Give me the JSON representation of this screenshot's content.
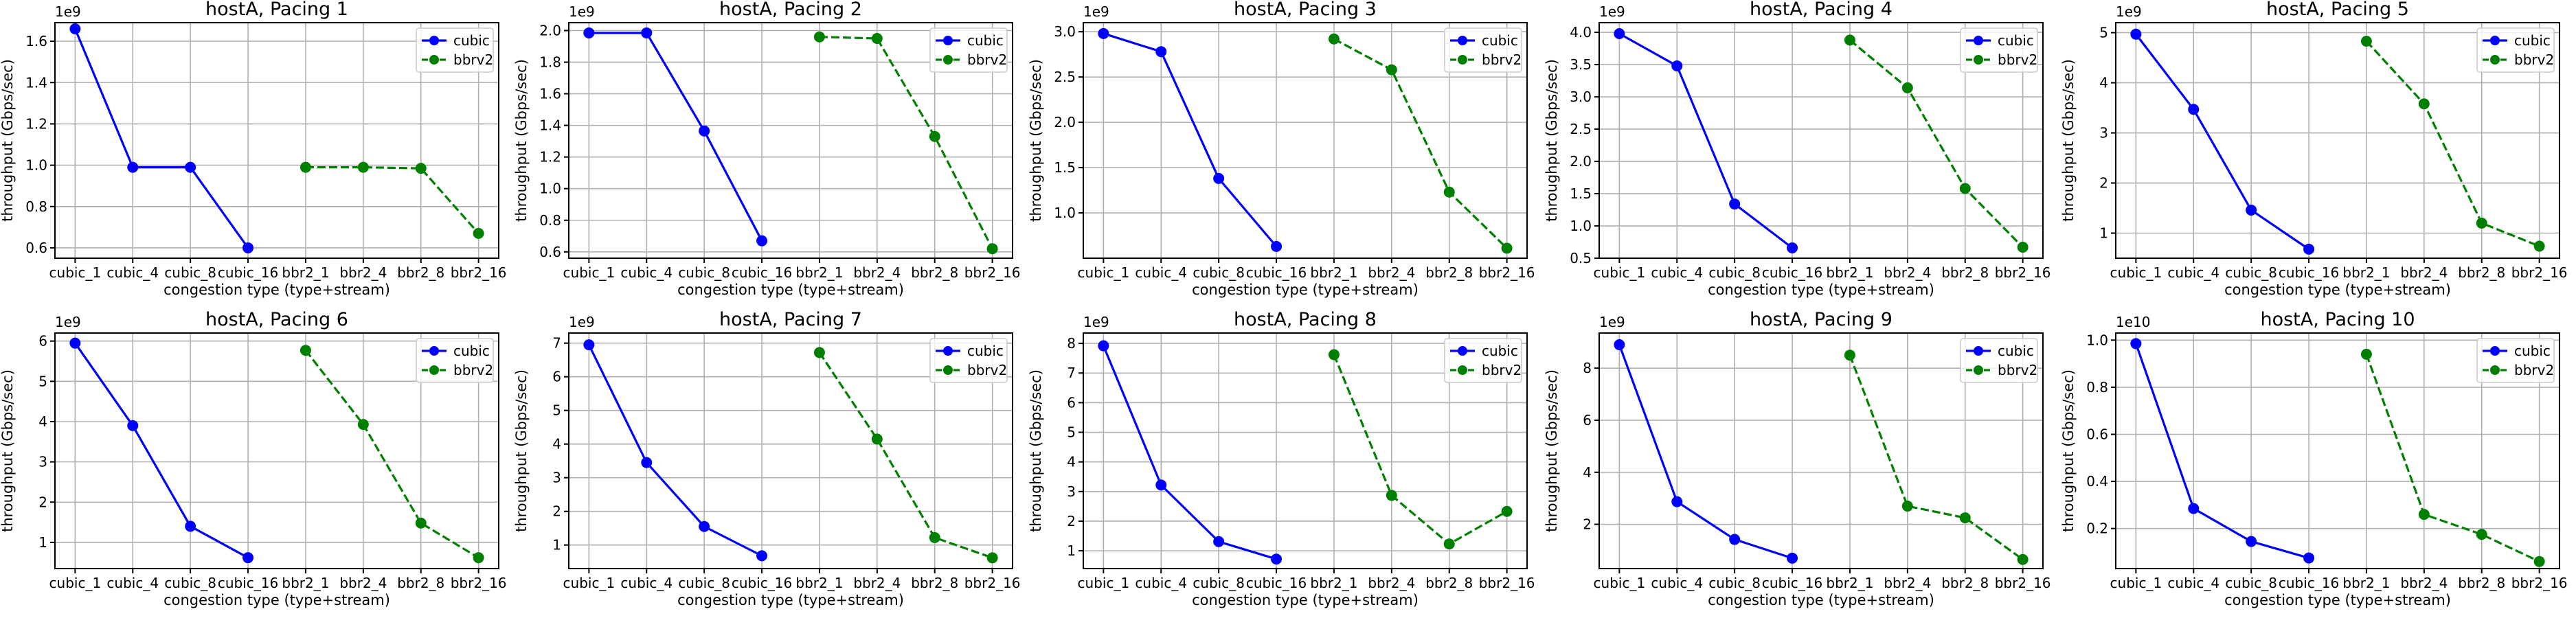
{
  "chart_data": [
    {
      "type": "line",
      "title": "hostA, Pacing 1",
      "xlabel": "congestion type (type+stream)",
      "ylabel": "throughput (Gbps/sec)",
      "offset_label": "1e9",
      "ylim": [
        0.55,
        1.69
      ],
      "yticks": [
        0.6,
        0.8,
        1.0,
        1.2,
        1.4,
        1.6
      ],
      "ytick_labels": [
        "0.6",
        "0.8",
        "1.0",
        "1.2",
        "1.4",
        "1.6"
      ],
      "categories": [
        "cubic_1",
        "cubic_4",
        "cubic_8",
        "cubic_16",
        "bbr2_1",
        "bbr2_4",
        "bbr2_8",
        "bbr2_16"
      ],
      "grid": true,
      "legend_position": "top-right",
      "series": [
        {
          "name": "cubic",
          "color": "#0000ff",
          "style": "solid",
          "x": [
            "cubic_1",
            "cubic_4",
            "cubic_8",
            "cubic_16"
          ],
          "values": [
            1.66,
            0.99,
            0.99,
            0.6
          ]
        },
        {
          "name": "bbrv2",
          "color": "#008000",
          "style": "dashed",
          "x": [
            "bbr2_1",
            "bbr2_4",
            "bbr2_8",
            "bbr2_16"
          ],
          "values": [
            0.99,
            0.99,
            0.985,
            0.67
          ]
        }
      ]
    },
    {
      "type": "line",
      "title": "hostA, Pacing 2",
      "xlabel": "congestion type (type+stream)",
      "ylabel": "throughput (Gbps/sec)",
      "offset_label": "1e9",
      "ylim": [
        0.56,
        2.05
      ],
      "yticks": [
        0.6,
        0.8,
        1.0,
        1.2,
        1.4,
        1.6,
        1.8,
        2.0
      ],
      "ytick_labels": [
        "0.6",
        "0.8",
        "1.0",
        "1.2",
        "1.4",
        "1.6",
        "1.8",
        "2.0"
      ],
      "categories": [
        "cubic_1",
        "cubic_4",
        "cubic_8",
        "cubic_16",
        "bbr2_1",
        "bbr2_4",
        "bbr2_8",
        "bbr2_16"
      ],
      "grid": true,
      "legend_position": "top-right",
      "series": [
        {
          "name": "cubic",
          "color": "#0000ff",
          "style": "solid",
          "x": [
            "cubic_1",
            "cubic_4",
            "cubic_8",
            "cubic_16"
          ],
          "values": [
            1.985,
            1.985,
            1.365,
            0.67
          ]
        },
        {
          "name": "bbrv2",
          "color": "#008000",
          "style": "dashed",
          "x": [
            "bbr2_1",
            "bbr2_4",
            "bbr2_8",
            "bbr2_16"
          ],
          "values": [
            1.96,
            1.95,
            1.33,
            0.62
          ]
        }
      ]
    },
    {
      "type": "line",
      "title": "hostA, Pacing 3",
      "xlabel": "congestion type (type+stream)",
      "ylabel": "throughput (Gbps/sec)",
      "offset_label": "1e9",
      "ylim": [
        0.5,
        3.1
      ],
      "yticks": [
        1.0,
        1.5,
        2.0,
        2.5,
        3.0
      ],
      "ytick_labels": [
        "1.0",
        "1.5",
        "2.0",
        "2.5",
        "3.0"
      ],
      "categories": [
        "cubic_1",
        "cubic_4",
        "cubic_8",
        "cubic_16",
        "bbr2_1",
        "bbr2_4",
        "bbr2_8",
        "bbr2_16"
      ],
      "grid": true,
      "legend_position": "top-right",
      "series": [
        {
          "name": "cubic",
          "color": "#0000ff",
          "style": "solid",
          "x": [
            "cubic_1",
            "cubic_4",
            "cubic_8",
            "cubic_16"
          ],
          "values": [
            2.98,
            2.78,
            1.38,
            0.63
          ]
        },
        {
          "name": "bbrv2",
          "color": "#008000",
          "style": "dashed",
          "x": [
            "bbr2_1",
            "bbr2_4",
            "bbr2_8",
            "bbr2_16"
          ],
          "values": [
            2.92,
            2.58,
            1.23,
            0.61
          ]
        }
      ]
    },
    {
      "type": "line",
      "title": "hostA, Pacing 4",
      "xlabel": "congestion type (type+stream)",
      "ylabel": "throughput (Gbps/sec)",
      "offset_label": "1e9",
      "ylim": [
        0.5,
        4.15
      ],
      "yticks": [
        0.5,
        1.0,
        1.5,
        2.0,
        2.5,
        3.0,
        3.5,
        4.0
      ],
      "ytick_labels": [
        "0.5",
        "1.0",
        "1.5",
        "2.0",
        "2.5",
        "3.0",
        "3.5",
        "4.0"
      ],
      "categories": [
        "cubic_1",
        "cubic_4",
        "cubic_8",
        "cubic_16",
        "bbr2_1",
        "bbr2_4",
        "bbr2_8",
        "bbr2_16"
      ],
      "grid": true,
      "legend_position": "top-right",
      "series": [
        {
          "name": "cubic",
          "color": "#0000ff",
          "style": "solid",
          "x": [
            "cubic_1",
            "cubic_4",
            "cubic_8",
            "cubic_16"
          ],
          "values": [
            3.98,
            3.48,
            1.34,
            0.66
          ]
        },
        {
          "name": "bbrv2",
          "color": "#008000",
          "style": "dashed",
          "x": [
            "bbr2_1",
            "bbr2_4",
            "bbr2_8",
            "bbr2_16"
          ],
          "values": [
            3.88,
            3.14,
            1.58,
            0.67
          ]
        }
      ]
    },
    {
      "type": "line",
      "title": "hostA, Pacing 5",
      "xlabel": "congestion type (type+stream)",
      "ylabel": "throughput (Gbps/sec)",
      "offset_label": "1e9",
      "ylim": [
        0.5,
        5.2
      ],
      "yticks": [
        1,
        2,
        3,
        4,
        5
      ],
      "ytick_labels": [
        "1",
        "2",
        "3",
        "4",
        "5"
      ],
      "categories": [
        "cubic_1",
        "cubic_4",
        "cubic_8",
        "cubic_16",
        "bbr2_1",
        "bbr2_4",
        "bbr2_8",
        "bbr2_16"
      ],
      "grid": true,
      "legend_position": "top-right",
      "series": [
        {
          "name": "cubic",
          "color": "#0000ff",
          "style": "solid",
          "x": [
            "cubic_1",
            "cubic_4",
            "cubic_8",
            "cubic_16"
          ],
          "values": [
            4.97,
            3.47,
            1.46,
            0.68
          ]
        },
        {
          "name": "bbrv2",
          "color": "#008000",
          "style": "dashed",
          "x": [
            "bbr2_1",
            "bbr2_4",
            "bbr2_8",
            "bbr2_16"
          ],
          "values": [
            4.83,
            3.58,
            1.2,
            0.74
          ]
        }
      ]
    },
    {
      "type": "line",
      "title": "hostA, Pacing 6",
      "xlabel": "congestion type (type+stream)",
      "ylabel": "throughput (Gbps/sec)",
      "offset_label": "1e9",
      "ylim": [
        0.35,
        6.2
      ],
      "yticks": [
        1,
        2,
        3,
        4,
        5,
        6
      ],
      "ytick_labels": [
        "1",
        "2",
        "3",
        "4",
        "5",
        "6"
      ],
      "categories": [
        "cubic_1",
        "cubic_4",
        "cubic_8",
        "cubic_16",
        "bbr2_1",
        "bbr2_4",
        "bbr2_8",
        "bbr2_16"
      ],
      "grid": true,
      "legend_position": "top-right",
      "series": [
        {
          "name": "cubic",
          "color": "#0000ff",
          "style": "solid",
          "x": [
            "cubic_1",
            "cubic_4",
            "cubic_8",
            "cubic_16"
          ],
          "values": [
            5.95,
            3.9,
            1.4,
            0.62
          ]
        },
        {
          "name": "bbrv2",
          "color": "#008000",
          "style": "dashed",
          "x": [
            "bbr2_1",
            "bbr2_4",
            "bbr2_8",
            "bbr2_16"
          ],
          "values": [
            5.77,
            3.93,
            1.48,
            0.62
          ]
        }
      ]
    },
    {
      "type": "line",
      "title": "hostA, Pacing 7",
      "xlabel": "congestion type (type+stream)",
      "ylabel": "throughput (Gbps/sec)",
      "offset_label": "1e9",
      "ylim": [
        0.3,
        7.3
      ],
      "yticks": [
        1,
        2,
        3,
        4,
        5,
        6,
        7
      ],
      "ytick_labels": [
        "1",
        "2",
        "3",
        "4",
        "5",
        "6",
        "7"
      ],
      "categories": [
        "cubic_1",
        "cubic_4",
        "cubic_8",
        "cubic_16",
        "bbr2_1",
        "bbr2_4",
        "bbr2_8",
        "bbr2_16"
      ],
      "grid": true,
      "legend_position": "top-right",
      "series": [
        {
          "name": "cubic",
          "color": "#0000ff",
          "style": "solid",
          "x": [
            "cubic_1",
            "cubic_4",
            "cubic_8",
            "cubic_16"
          ],
          "values": [
            6.95,
            3.45,
            1.55,
            0.68
          ]
        },
        {
          "name": "bbrv2",
          "color": "#008000",
          "style": "dashed",
          "x": [
            "bbr2_1",
            "bbr2_4",
            "bbr2_8",
            "bbr2_16"
          ],
          "values": [
            6.72,
            4.15,
            1.22,
            0.62
          ]
        }
      ]
    },
    {
      "type": "line",
      "title": "hostA, Pacing 8",
      "xlabel": "congestion type (type+stream)",
      "ylabel": "throughput (Gbps/sec)",
      "offset_label": "1e9",
      "ylim": [
        0.4,
        8.35
      ],
      "yticks": [
        1,
        2,
        3,
        4,
        5,
        6,
        7,
        8
      ],
      "ytick_labels": [
        "1",
        "2",
        "3",
        "4",
        "5",
        "6",
        "7",
        "8"
      ],
      "categories": [
        "cubic_1",
        "cubic_4",
        "cubic_8",
        "cubic_16",
        "bbr2_1",
        "bbr2_4",
        "bbr2_8",
        "bbr2_16"
      ],
      "grid": true,
      "legend_position": "top-right",
      "series": [
        {
          "name": "cubic",
          "color": "#0000ff",
          "style": "solid",
          "x": [
            "cubic_1",
            "cubic_4",
            "cubic_8",
            "cubic_16"
          ],
          "values": [
            7.92,
            3.22,
            1.31,
            0.72
          ]
        },
        {
          "name": "bbrv2",
          "color": "#008000",
          "style": "dashed",
          "x": [
            "bbr2_1",
            "bbr2_4",
            "bbr2_8",
            "bbr2_16"
          ],
          "values": [
            7.62,
            2.87,
            1.23,
            2.33
          ]
        }
      ]
    },
    {
      "type": "line",
      "title": "hostA, Pacing 9",
      "xlabel": "congestion type (type+stream)",
      "ylabel": "throughput (Gbps/sec)",
      "offset_label": "1e9",
      "ylim": [
        0.3,
        9.35
      ],
      "yticks": [
        2,
        4,
        6,
        8
      ],
      "ytick_labels": [
        "2",
        "4",
        "6",
        "8"
      ],
      "categories": [
        "cubic_1",
        "cubic_4",
        "cubic_8",
        "cubic_16",
        "bbr2_1",
        "bbr2_4",
        "bbr2_8",
        "bbr2_16"
      ],
      "grid": true,
      "legend_position": "top-right",
      "series": [
        {
          "name": "cubic",
          "color": "#0000ff",
          "style": "solid",
          "x": [
            "cubic_1",
            "cubic_4",
            "cubic_8",
            "cubic_16"
          ],
          "values": [
            8.9,
            2.87,
            1.42,
            0.7
          ]
        },
        {
          "name": "bbrv2",
          "color": "#008000",
          "style": "dashed",
          "x": [
            "bbr2_1",
            "bbr2_4",
            "bbr2_8",
            "bbr2_16"
          ],
          "values": [
            8.5,
            2.7,
            2.25,
            0.65
          ]
        }
      ]
    },
    {
      "type": "line",
      "title": "hostA, Pacing 10",
      "xlabel": "congestion type (type+stream)",
      "ylabel": "throughput (Gbps/sec)",
      "offset_label": "1e10",
      "ylim": [
        0.03,
        1.03
      ],
      "yticks": [
        0.2,
        0.4,
        0.6,
        0.8,
        1.0
      ],
      "ytick_labels": [
        "0.2",
        "0.4",
        "0.6",
        "0.8",
        "1.0"
      ],
      "categories": [
        "cubic_1",
        "cubic_4",
        "cubic_8",
        "cubic_16",
        "bbr2_1",
        "bbr2_4",
        "bbr2_8",
        "bbr2_16"
      ],
      "grid": true,
      "legend_position": "top-right",
      "series": [
        {
          "name": "cubic",
          "color": "#0000ff",
          "style": "solid",
          "x": [
            "cubic_1",
            "cubic_4",
            "cubic_8",
            "cubic_16"
          ],
          "values": [
            0.985,
            0.285,
            0.145,
            0.075
          ]
        },
        {
          "name": "bbrv2",
          "color": "#008000",
          "style": "dashed",
          "x": [
            "bbr2_1",
            "bbr2_4",
            "bbr2_8",
            "bbr2_16"
          ],
          "values": [
            0.94,
            0.26,
            0.175,
            0.06
          ]
        }
      ]
    }
  ]
}
